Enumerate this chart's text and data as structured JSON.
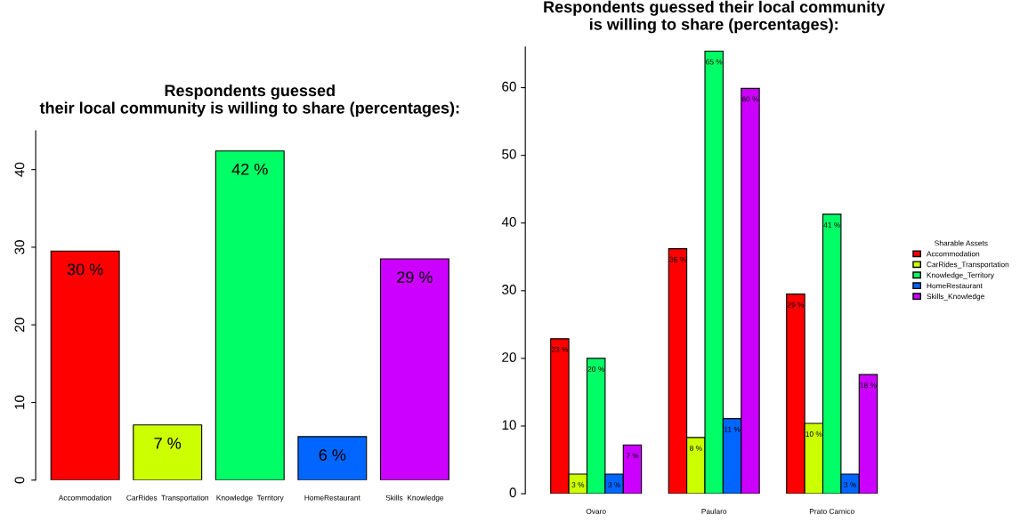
{
  "chart_data": [
    {
      "type": "bar",
      "title": "Respondents guessed\ntheir local community is willing to share (percentages):",
      "categories": [
        "Accommodation",
        "CarRides  Transportation",
        "Knowledge  Territory",
        "HomeRestaurant",
        "Skills  Knowledge"
      ],
      "values": [
        29.5,
        7.1,
        42.4,
        5.6,
        28.5
      ],
      "colors": [
        "#ff0000",
        "#ccff00",
        "#00ff66",
        "#0066ff",
        "#cc00ff"
      ],
      "value_labels": [
        "30 %",
        "7 %",
        "42 %",
        "6 %",
        "29 %"
      ],
      "ylim": [
        0,
        45
      ],
      "yticks": [
        0,
        10,
        20,
        30,
        40
      ],
      "grid": false,
      "legend": false
    },
    {
      "type": "bar",
      "title": "Respondents guessed their local community\nis willing to share (percentages):",
      "categories": [
        "Ovaro",
        "Paularo",
        "Prato Carnico"
      ],
      "legend_title": "Sharable Assets",
      "series": [
        {
          "name": "Accommodation",
          "color": "#ff0000",
          "values": [
            22.9,
            36.2,
            29.5
          ],
          "value_labels": [
            "23 %",
            "36 %",
            "29 %"
          ]
        },
        {
          "name": "CarRides_Transportation",
          "color": "#ccff00",
          "values": [
            2.9,
            8.3,
            10.4
          ],
          "value_labels": [
            "3 %",
            "8 %",
            "10 %"
          ]
        },
        {
          "name": "Knowledge_Territory",
          "color": "#00ff66",
          "values": [
            20.0,
            65.4,
            41.3
          ],
          "value_labels": [
            "20 %",
            "65 %",
            "41 %"
          ]
        },
        {
          "name": "HomeRestaurant",
          "color": "#0066ff",
          "values": [
            2.9,
            11.1,
            2.9
          ],
          "value_labels": [
            "3 %",
            "11 %",
            "3 %"
          ]
        },
        {
          "name": "Skills_Knowledge",
          "color": "#cc00ff",
          "values": [
            7.2,
            59.9,
            17.6
          ],
          "value_labels": [
            "7 %",
            "60 %",
            "18 %"
          ]
        }
      ],
      "ylim": [
        0,
        66
      ],
      "yticks": [
        0,
        10,
        20,
        30,
        40,
        50,
        60
      ],
      "grid": false,
      "legend": "right"
    }
  ]
}
